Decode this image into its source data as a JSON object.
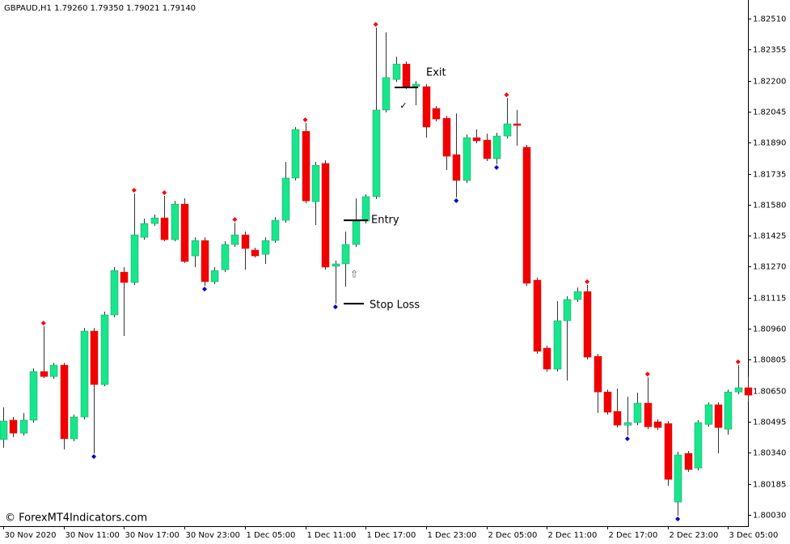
{
  "chart_data": {
    "type": "candlestick",
    "title": "GBPAUD,H1  1.79260 1.79350 1.79021 1.79140",
    "footer": "© ForexMT4Indicators.com",
    "up_color": "#19e68c",
    "down_color": "#f00000",
    "wick_color": "#333333",
    "fractal_high_color": "#ff0000",
    "fractal_low_color": "#0000dd",
    "ylim": [
      1.79973,
      1.82603
    ],
    "yticks": [
      {
        "value": 1.8251,
        "label": "1.82510"
      },
      {
        "value": 1.82355,
        "label": "1.82355"
      },
      {
        "value": 1.822,
        "label": "1.82200"
      },
      {
        "value": 1.82045,
        "label": "1.82045"
      },
      {
        "value": 1.8189,
        "label": "1.81890"
      },
      {
        "value": 1.81735,
        "label": "1.81735"
      },
      {
        "value": 1.8158,
        "label": "1.81580"
      },
      {
        "value": 1.81425,
        "label": "1.81425"
      },
      {
        "value": 1.8127,
        "label": "1.81270"
      },
      {
        "value": 1.81115,
        "label": "1.81115"
      },
      {
        "value": 1.8096,
        "label": "1.80960"
      },
      {
        "value": 1.80805,
        "label": "1.80805"
      },
      {
        "value": 1.8065,
        "label": "1.80650"
      },
      {
        "value": 1.80495,
        "label": "1.80495"
      },
      {
        "value": 1.8034,
        "label": "1.80340"
      },
      {
        "value": 1.80185,
        "label": "1.80185"
      },
      {
        "value": 1.8003,
        "label": "1.80030"
      }
    ],
    "time_labels": [
      "30 Nov 2020",
      "30 Nov 11:00",
      "30 Nov 17:00",
      "30 Nov 23:00",
      "1 Dec 05:00",
      "1 Dec 11:00",
      "1 Dec 17:00",
      "1 Dec 23:00",
      "2 Dec 05:00",
      "2 Dec 11:00",
      "2 Dec 17:00",
      "2 Dec 23:00",
      "3 Dec 05:00"
    ],
    "open": [
      1.80406,
      1.80503,
      1.80438,
      1.80503,
      1.80746,
      1.80721,
      1.80778,
      1.8041,
      1.80519,
      1.80948,
      1.80681,
      1.81029,
      1.81243,
      1.81191,
      1.81417,
      1.81486,
      1.81514,
      1.81405,
      1.81583,
      1.81324,
      1.81401,
      1.81195,
      1.81255,
      1.81381,
      1.81429,
      1.81353,
      1.81332,
      1.81401,
      1.81502,
      1.81713,
      1.81947,
      1.81595,
      1.81786,
      1.81272,
      1.81284,
      1.81381,
      1.81498,
      1.8162,
      1.82053,
      1.82206,
      1.82283,
      1.8217,
      1.8217,
      1.82061,
      1.82012,
      1.8183,
      1.81701,
      1.81915,
      1.81903,
      1.8181,
      1.81923,
      1.81984,
      1.81867,
      1.81203,
      1.80863,
      1.80758,
      1.81,
      1.81106,
      1.81146,
      1.80822,
      1.80644,
      1.80547,
      1.80478,
      1.80491,
      1.80588,
      1.80495,
      1.80486,
      1.80094,
      1.80337,
      1.80264,
      1.80482,
      1.8058,
      1.80458,
      1.80644,
      1.80665
    ],
    "high": [
      1.80567,
      1.80519,
      1.80539,
      1.80762,
      1.80972,
      1.8079,
      1.8079,
      1.80531,
      1.80964,
      1.80964,
      1.81045,
      1.81268,
      1.81268,
      1.81636,
      1.8151,
      1.81531,
      1.81624,
      1.81599,
      1.81612,
      1.81417,
      1.81417,
      1.81268,
      1.81397,
      1.8149,
      1.81446,
      1.81365,
      1.81417,
      1.81518,
      1.81794,
      1.81968,
      1.81988,
      1.81794,
      1.81802,
      1.813,
      1.81446,
      1.81612,
      1.81632,
      1.82465,
      1.82441,
      1.8232,
      1.82296,
      1.82198,
      1.82182,
      1.82073,
      1.82024,
      1.82036,
      1.81931,
      1.81956,
      1.81935,
      1.81939,
      1.82113,
      1.82053,
      1.81879,
      1.81215,
      1.80875,
      1.81098,
      1.81122,
      1.81166,
      1.81179,
      1.80835,
      1.80656,
      1.80661,
      1.8062,
      1.8064,
      1.80717,
      1.80507,
      1.80499,
      1.80345,
      1.80349,
      1.80503,
      1.80592,
      1.80592,
      1.80656,
      1.80778,
      1.80721
    ],
    "low": [
      1.80365,
      1.80418,
      1.80426,
      1.80491,
      1.80713,
      1.80709,
      1.80357,
      1.80397,
      1.80507,
      1.80337,
      1.80673,
      1.81017,
      1.80924,
      1.81179,
      1.81405,
      1.81474,
      1.81397,
      1.81397,
      1.81288,
      1.81268,
      1.81174,
      1.81183,
      1.81243,
      1.81369,
      1.81255,
      1.81316,
      1.81284,
      1.81389,
      1.8149,
      1.81701,
      1.81587,
      1.81478,
      1.81255,
      1.81085,
      1.8117,
      1.81369,
      1.81486,
      1.81608,
      1.82041,
      1.82194,
      1.82158,
      1.82077,
      1.81915,
      1.81996,
      1.81753,
      1.81616,
      1.81688,
      1.81887,
      1.81798,
      1.81782,
      1.81911,
      1.81875,
      1.81174,
      1.80835,
      1.80746,
      1.80746,
      1.80701,
      1.81094,
      1.80806,
      1.80539,
      1.80531,
      1.80466,
      1.80426,
      1.80478,
      1.80458,
      1.80454,
      1.80175,
      1.80025,
      1.80244,
      1.80252,
      1.8047,
      1.80337,
      1.8043,
      1.80632,
      1.80596
    ],
    "close": [
      1.80499,
      1.80438,
      1.80503,
      1.80746,
      1.80721,
      1.80778,
      1.8041,
      1.80519,
      1.80948,
      1.80681,
      1.81029,
      1.81251,
      1.81191,
      1.81429,
      1.81486,
      1.81514,
      1.81405,
      1.81583,
      1.81296,
      1.81401,
      1.81195,
      1.81251,
      1.81381,
      1.81429,
      1.81361,
      1.81324,
      1.81401,
      1.81502,
      1.81713,
      1.81956,
      1.81599,
      1.81777,
      1.81268,
      1.81284,
      1.81381,
      1.81498,
      1.8162,
      1.82053,
      1.82215,
      1.82283,
      1.8217,
      1.82182,
      1.81968,
      1.82008,
      1.81822,
      1.81701,
      1.81915,
      1.81899,
      1.8181,
      1.81923,
      1.81984,
      1.81976,
      1.81187,
      1.80847,
      1.80758,
      1.81,
      1.81106,
      1.81146,
      1.80818,
      1.80644,
      1.80543,
      1.80478,
      1.80491,
      1.80588,
      1.8047,
      1.80466,
      1.80207,
      1.80329,
      1.80256,
      1.80491,
      1.8058,
      1.80466,
      1.80644,
      1.80665,
      1.80628
    ],
    "fractal_highs": [
      4,
      13,
      16,
      23,
      30,
      37,
      50,
      58,
      64,
      73
    ],
    "fractal_lows": [
      9,
      20,
      33,
      45,
      49,
      62,
      67
    ],
    "annotations": [
      {
        "text": "Entry",
        "value": 1.81502
      },
      {
        "text": "Stop Loss",
        "value": 1.81085
      },
      {
        "text": "Exit",
        "value": 1.82166
      }
    ],
    "entry_arrow": "⇧",
    "exit_check": "✓"
  }
}
